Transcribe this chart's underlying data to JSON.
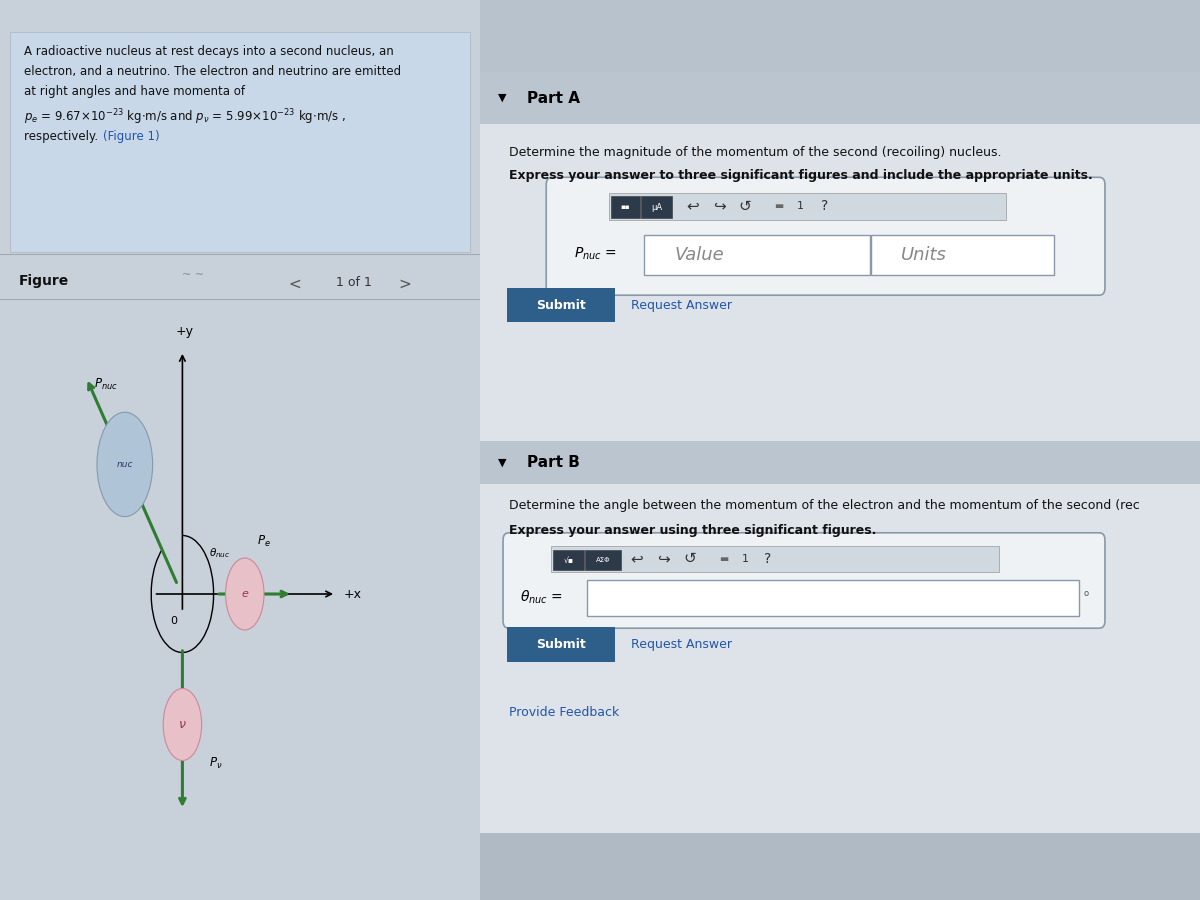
{
  "problem_text_line1": "A radioactive nucleus at rest decays into a second nucleus, an",
  "problem_text_line2": "electron, and a neutrino. The electron and neutrino are emitted",
  "problem_text_line3": "at right angles and have momenta of",
  "figure_label": "Figure",
  "page_label": "1 of 1",
  "part_a_label": "Part A",
  "part_a_line1": "Determine the magnitude of the momentum of the second (recoiling) nucleus.",
  "part_a_line2": "Express your answer to three significant figures and include the appropriate units.",
  "part_a_value_placeholder": "Value",
  "part_a_units_placeholder": "Units",
  "submit_btn": "Submit",
  "request_answer_link": "Request Answer",
  "part_b_label": "Part B",
  "part_b_line1": "Determine the angle between the momentum of the electron and the momentum of the second (rec",
  "part_b_line2": "Express your answer using three significant figures.",
  "provide_feedback_link": "Provide Feedback",
  "arrow_color": "#2e7d32",
  "nucleus_circle_color": "#b0c4d8",
  "electron_circle_color": "#e8c0c8",
  "neutrino_circle_color": "#e8c0c8",
  "divider_color": "#a0aab4",
  "left_bg": "#dce4ec",
  "problem_box_bg": "#c8d8e8",
  "right_bg": "#c8d0da",
  "panel_header_bg": "#bbc5cf",
  "panel_content_bg": "#dde3e9",
  "top_bar_bg": "#b8c2cc",
  "submit_btn_color": "#2d5f8a",
  "link_color": "#2255aa"
}
